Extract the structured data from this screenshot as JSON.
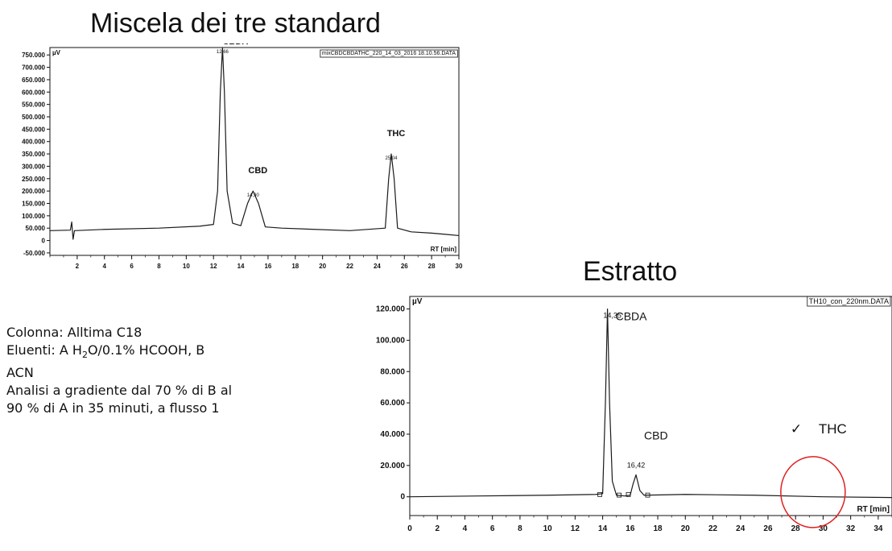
{
  "chart_data": [
    {
      "type": "line",
      "title": "Miscela dei tre standard",
      "file_label": "mixCBDCBDATHC_220_14_03_2016 18.10.56.DATA",
      "y_unit": "µV",
      "x_unit": "RT [min]",
      "xlim": [
        0,
        30
      ],
      "ylim": [
        -60000,
        780000
      ],
      "x_ticks": [
        "2",
        "4",
        "6",
        "8",
        "10",
        "12",
        "14",
        "16",
        "18",
        "20",
        "22",
        "24",
        "26",
        "28",
        "30"
      ],
      "y_ticks": [
        "750.000",
        "700.000",
        "650.000",
        "600.000",
        "550.000",
        "500.000",
        "450.000",
        "400.000",
        "350.000",
        "300.000",
        "250.000",
        "200.000",
        "150.000",
        "100.000",
        "50.000",
        "0",
        "-50.000"
      ],
      "baseline": 40000,
      "peaks": [
        {
          "name": "CBDA",
          "rt": 12.66,
          "rt_label": "12,66",
          "height": 780000
        },
        {
          "name": "CBD",
          "rt": 14.9,
          "rt_label": "14,90",
          "height": 200000
        },
        {
          "name": "THC",
          "rt": 25.04,
          "rt_label": "25,04",
          "height": 350000
        }
      ],
      "series": [
        {
          "x": [
            0,
            1.5,
            1.6,
            1.7,
            1.8,
            4,
            8,
            11,
            12,
            12.3,
            12.5,
            12.66,
            12.8,
            13,
            13.4,
            14,
            14.5,
            14.9,
            15.3,
            15.8,
            17,
            22,
            24.6,
            24.85,
            25.04,
            25.25,
            25.5,
            26.5,
            28,
            29,
            30
          ],
          "y": [
            40000,
            42000,
            75000,
            5000,
            40000,
            45000,
            50000,
            58000,
            65000,
            200000,
            600000,
            780000,
            600000,
            200000,
            70000,
            60000,
            150000,
            200000,
            150000,
            55000,
            50000,
            40000,
            50000,
            250000,
            350000,
            250000,
            50000,
            35000,
            30000,
            25000,
            20000
          ]
        }
      ]
    },
    {
      "type": "line",
      "title": "Estratto",
      "file_label": "TH10_con_220nm.DATA",
      "y_unit": "µV",
      "x_unit": "RT [min]",
      "xlim": [
        0,
        35
      ],
      "ylim": [
        -12000,
        128000
      ],
      "x_ticks": [
        "0",
        "2",
        "4",
        "6",
        "8",
        "10",
        "12",
        "14",
        "16",
        "18",
        "20",
        "22",
        "24",
        "26",
        "28",
        "30",
        "32",
        "34"
      ],
      "y_ticks": [
        "120.000",
        "100.000",
        "80.000",
        "60.000",
        "40.000",
        "20.000",
        "0"
      ],
      "baseline": 0,
      "peaks": [
        {
          "name": "CBDA",
          "rt": 14.35,
          "rt_label": "14,35",
          "height": 120000
        },
        {
          "name": "CBD",
          "rt": 16.42,
          "rt_label": "16,42",
          "height": 14000
        }
      ],
      "annotation": {
        "check": "✓",
        "label": "THC",
        "circle_center_rt": 29.5,
        "circle_center_y": 3000
      },
      "series": [
        {
          "x": [
            0,
            5,
            10,
            13.5,
            14,
            14.2,
            14.35,
            14.5,
            14.7,
            15,
            15.6,
            16,
            16.2,
            16.42,
            16.7,
            17,
            20,
            25,
            30,
            35
          ],
          "y": [
            0,
            500,
            1000,
            1500,
            2000,
            60000,
            120000,
            60000,
            10000,
            1000,
            500,
            1000,
            8000,
            14000,
            4000,
            1000,
            1500,
            1000,
            0,
            -500
          ]
        }
      ]
    }
  ],
  "method_text": {
    "line1": "Colonna: Alltima C18",
    "line2_pre": "Eluenti: A H",
    "line2_sub1": "2",
    "line2_mid": "O/0.1% HCOOH, B",
    "line3": "ACN",
    "line4": "Analisi a gradiente dal 70 % di B al",
    "line5": "90 % di A in 35 minuti, a flusso 1"
  },
  "colors": {
    "trace": "#1a1a1a",
    "circle": "#e02020",
    "axis": "#111111"
  }
}
